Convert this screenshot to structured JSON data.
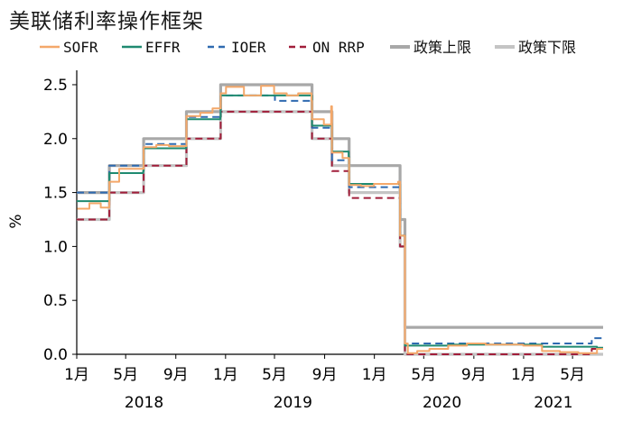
{
  "chart_data": {
    "type": "line",
    "title": "美联储利率操作框架",
    "ylabel": "%",
    "ylim": [
      0,
      2.6
    ],
    "yticks": [
      "0.0",
      "0.5",
      "1.0",
      "1.5",
      "2.0",
      "2.5"
    ],
    "xlim": [
      "2018-01-01",
      "2021-07-15"
    ],
    "xticks": [
      {
        "date": "2018-01-01",
        "label": "1月"
      },
      {
        "date": "2018-05-01",
        "label": "5月"
      },
      {
        "date": "2018-09-01",
        "label": "9月"
      },
      {
        "date": "2019-01-01",
        "label": "1月"
      },
      {
        "date": "2019-05-01",
        "label": "5月"
      },
      {
        "date": "2019-09-01",
        "label": "9月"
      },
      {
        "date": "2020-01-01",
        "label": "1月"
      },
      {
        "date": "2020-05-01",
        "label": "5月"
      },
      {
        "date": "2020-09-01",
        "label": "9月"
      },
      {
        "date": "2021-01-01",
        "label": "1月"
      },
      {
        "date": "2021-05-01",
        "label": "5月"
      }
    ],
    "year_labels": [
      {
        "date": "2018-06-15",
        "label": "2018"
      },
      {
        "date": "2019-06-15",
        "label": "2019"
      },
      {
        "date": "2020-06-15",
        "label": "2020"
      },
      {
        "date": "2021-03-15",
        "label": "2021"
      }
    ],
    "legend_position": "top",
    "series": [
      {
        "name": "SOFR",
        "color": "#f4a86a",
        "dash": "solid",
        "x": [
          "2018-01-02",
          "2018-02-01",
          "2018-03-01",
          "2018-03-22",
          "2018-04-15",
          "2018-05-15",
          "2018-06-14",
          "2018-07-15",
          "2018-08-15",
          "2018-09-27",
          "2018-10-31",
          "2018-11-30",
          "2018-12-20",
          "2019-01-02",
          "2019-02-15",
          "2019-03-29",
          "2019-04-30",
          "2019-05-31",
          "2019-06-28",
          "2019-07-31",
          "2019-08-01",
          "2019-08-30",
          "2019-09-17",
          "2019-09-19",
          "2019-10-15",
          "2019-10-31",
          "2019-11-29",
          "2019-12-31",
          "2020-01-31",
          "2020-02-28",
          "2020-03-04",
          "2020-03-16",
          "2020-03-23",
          "2020-04-15",
          "2020-05-15",
          "2020-06-30",
          "2020-08-15",
          "2020-09-30",
          "2020-11-15",
          "2020-12-31",
          "2021-02-15",
          "2021-03-31",
          "2021-05-15",
          "2021-06-30"
        ],
        "values": [
          1.35,
          1.4,
          1.36,
          1.6,
          1.72,
          1.72,
          1.92,
          1.94,
          1.93,
          2.21,
          2.24,
          2.28,
          2.42,
          2.48,
          2.4,
          2.49,
          2.42,
          2.4,
          2.42,
          2.35,
          2.18,
          2.13,
          2.3,
          1.87,
          1.82,
          1.57,
          1.56,
          1.58,
          1.58,
          1.6,
          1.1,
          0.1,
          0.01,
          0.03,
          0.05,
          0.08,
          0.1,
          0.09,
          0.09,
          0.08,
          0.03,
          0.02,
          0.01,
          0.05
        ]
      },
      {
        "name": "EFFR",
        "color": "#1f8a70",
        "dash": "solid",
        "x": [
          "2018-01-01",
          "2018-03-21",
          "2018-03-22",
          "2018-06-13",
          "2018-06-14",
          "2018-09-26",
          "2018-09-27",
          "2018-12-19",
          "2018-12-20",
          "2019-07-31",
          "2019-08-01",
          "2019-09-18",
          "2019-09-19",
          "2019-10-30",
          "2019-10-31",
          "2020-03-03",
          "2020-03-04",
          "2020-03-15",
          "2020-03-16",
          "2020-06-30",
          "2021-02-15",
          "2021-06-30"
        ],
        "values": [
          1.42,
          1.42,
          1.68,
          1.7,
          1.91,
          1.92,
          2.18,
          2.2,
          2.4,
          2.4,
          2.12,
          2.14,
          1.88,
          1.83,
          1.58,
          1.58,
          1.1,
          1.1,
          0.08,
          0.09,
          0.07,
          0.06
        ]
      },
      {
        "name": "IOER",
        "color": "#2f6ab0",
        "dash": "dashed",
        "x": [
          "2018-01-01",
          "2018-03-22",
          "2018-06-14",
          "2018-09-27",
          "2018-12-20",
          "2019-05-02",
          "2019-08-01",
          "2019-09-19",
          "2019-10-31",
          "2020-03-04",
          "2020-03-16",
          "2021-06-17",
          "2021-07-15"
        ],
        "values": [
          1.5,
          1.75,
          1.95,
          2.2,
          2.4,
          2.35,
          2.1,
          1.8,
          1.55,
          1.1,
          0.1,
          0.15,
          0.15
        ]
      },
      {
        "name": "ON RRP",
        "color": "#a11e3a",
        "dash": "dashed",
        "x": [
          "2018-01-01",
          "2018-03-22",
          "2018-06-14",
          "2018-09-27",
          "2018-12-20",
          "2019-08-01",
          "2019-09-19",
          "2019-10-31",
          "2020-03-04",
          "2020-03-16",
          "2021-06-17",
          "2021-07-15"
        ],
        "values": [
          1.25,
          1.5,
          1.75,
          2.0,
          2.25,
          2.0,
          1.7,
          1.45,
          1.0,
          0.0,
          0.05,
          0.05
        ]
      },
      {
        "name": "政策上限",
        "color": "#a8a8a8",
        "dash": "solid",
        "x": [
          "2018-01-01",
          "2018-03-22",
          "2018-06-14",
          "2018-09-27",
          "2018-12-20",
          "2019-08-01",
          "2019-09-19",
          "2019-10-31",
          "2020-03-04",
          "2020-03-16",
          "2021-07-15"
        ],
        "values": [
          1.5,
          1.75,
          2.0,
          2.25,
          2.5,
          2.25,
          2.0,
          1.75,
          1.25,
          0.25,
          0.25
        ]
      },
      {
        "name": "政策下限",
        "color": "#c4c4c4",
        "dash": "solid",
        "x": [
          "2018-01-01",
          "2018-03-22",
          "2018-06-14",
          "2018-09-27",
          "2018-12-20",
          "2019-08-01",
          "2019-09-19",
          "2019-10-31",
          "2020-03-04",
          "2020-03-16",
          "2021-07-15"
        ],
        "values": [
          1.25,
          1.5,
          1.75,
          2.0,
          2.25,
          2.0,
          1.75,
          1.5,
          1.0,
          0.0,
          0.0
        ]
      }
    ]
  }
}
